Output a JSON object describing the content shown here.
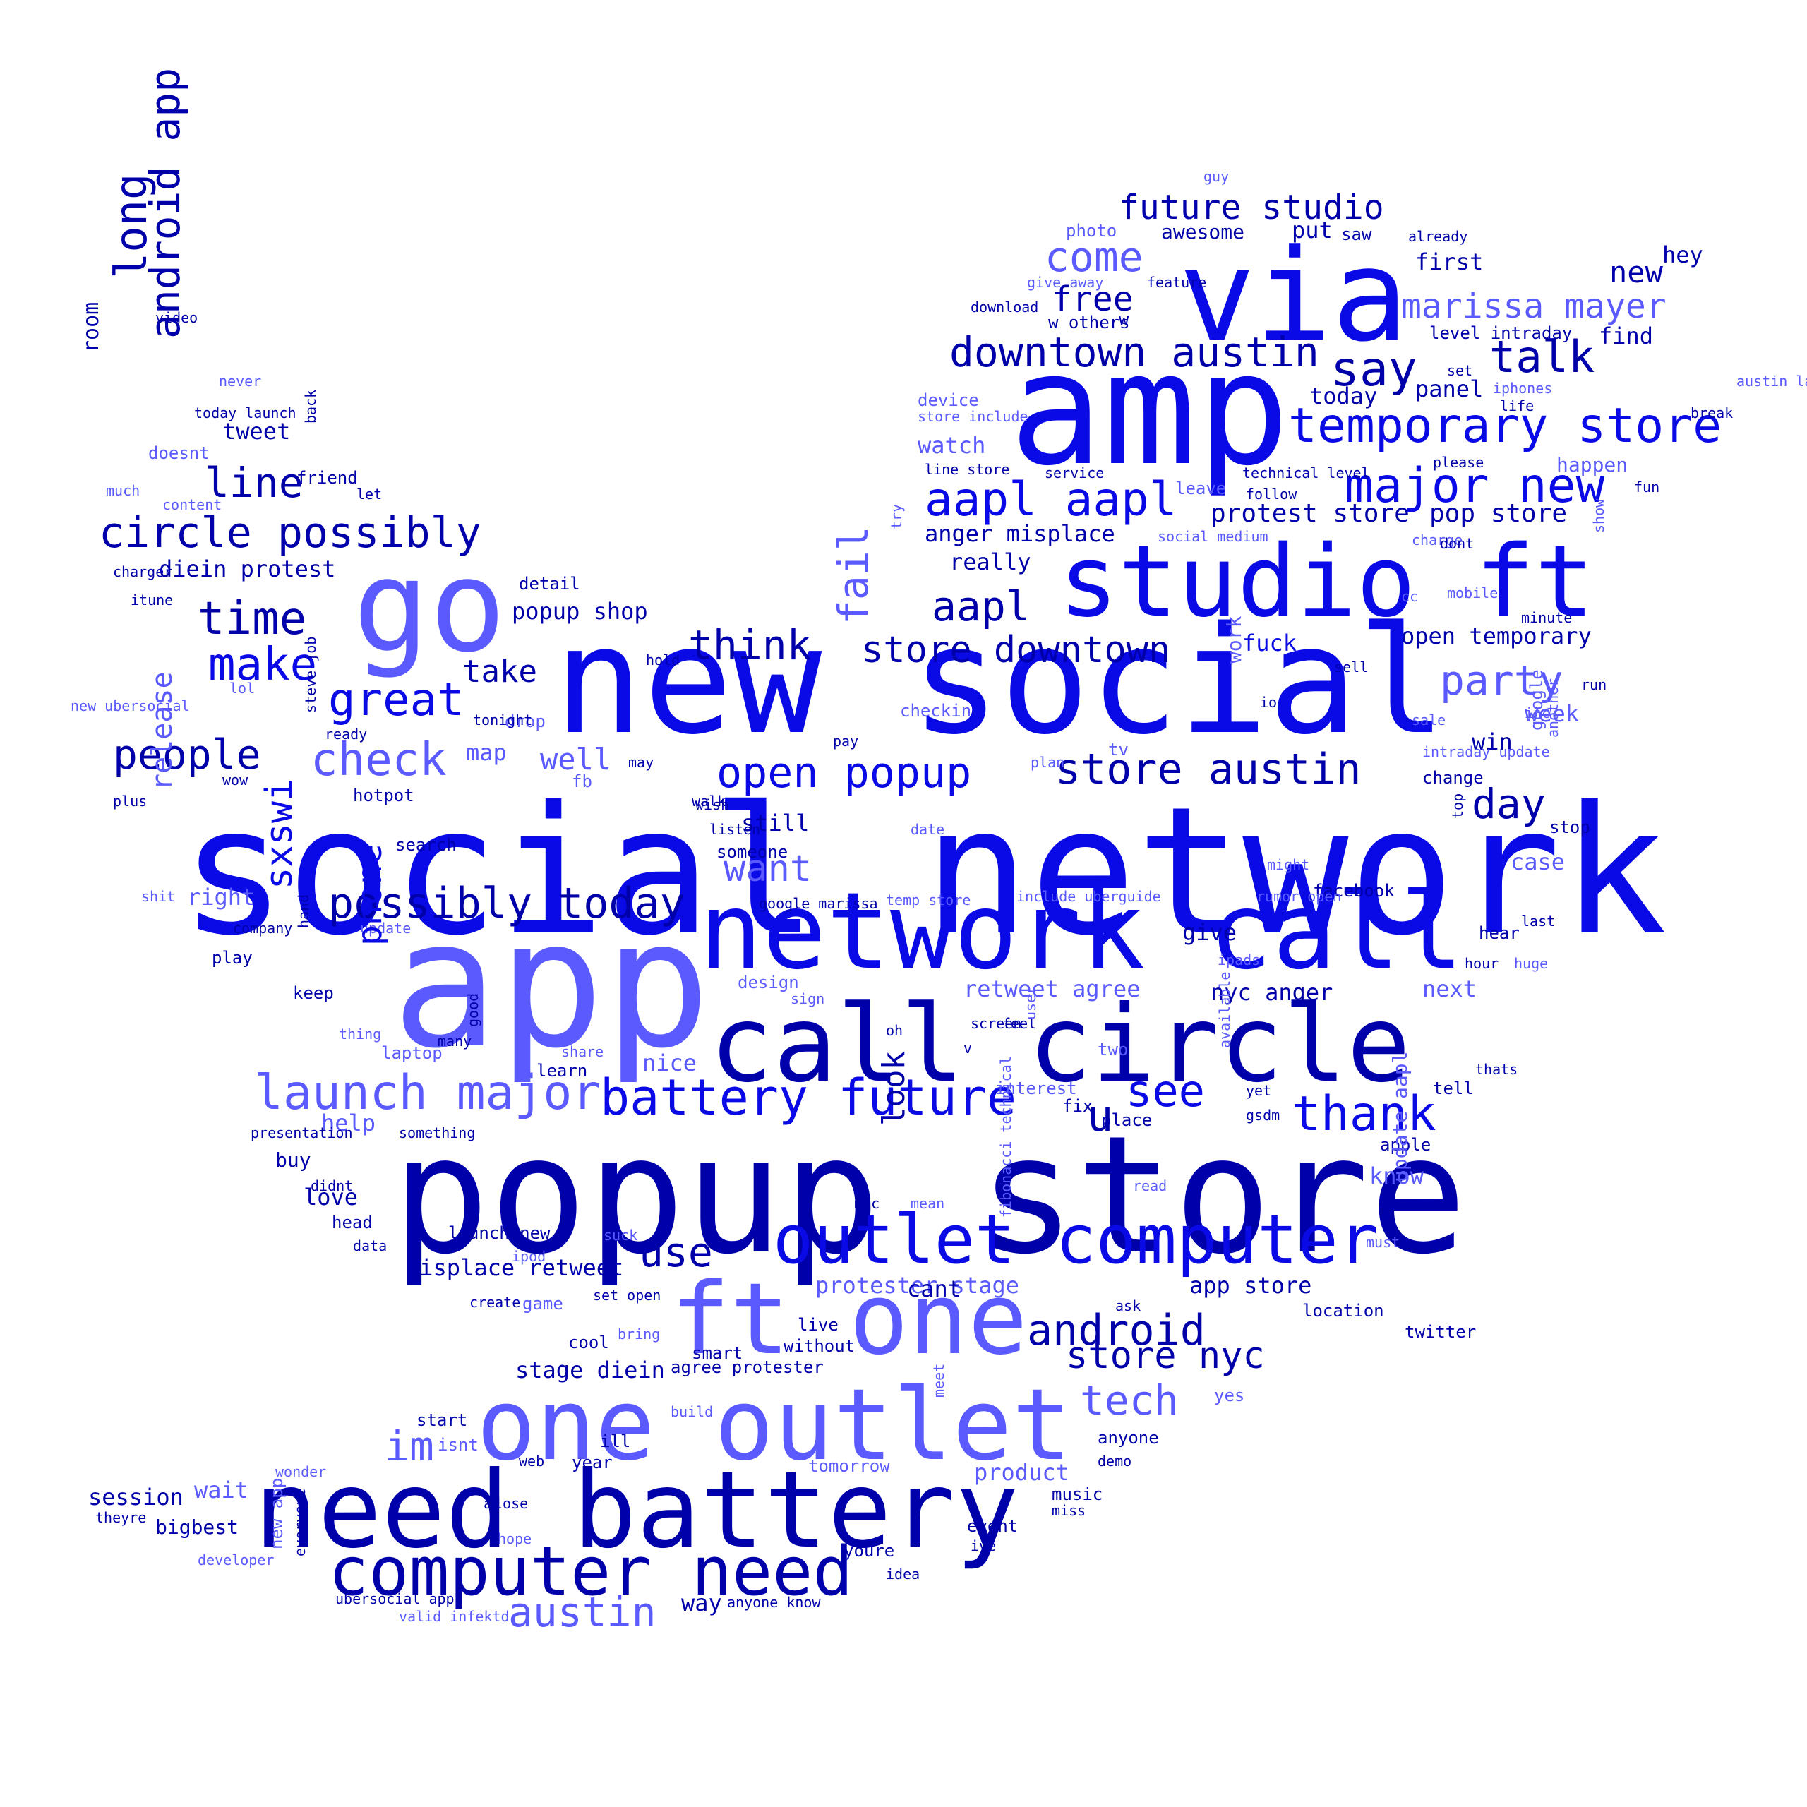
{
  "palette": {
    "dark": "#0000aa",
    "mid": "#0a0ae6",
    "light": "#5a5aff"
  },
  "words": [
    {
      "text": "social network",
      "c": "mid"
    },
    {
      "text": "popup store",
      "c": "dark"
    },
    {
      "text": "new social",
      "c": "mid"
    },
    {
      "text": "app",
      "c": "light"
    },
    {
      "text": "amp",
      "c": "mid"
    },
    {
      "text": "via",
      "c": "mid"
    },
    {
      "text": "go",
      "c": "light"
    },
    {
      "text": "network call",
      "c": "mid"
    },
    {
      "text": "call circle",
      "c": "dark"
    },
    {
      "text": "need battery",
      "c": "dark"
    },
    {
      "text": "studio ft",
      "c": "mid"
    },
    {
      "text": "ft one",
      "c": "light"
    },
    {
      "text": "one outlet",
      "c": "light"
    },
    {
      "text": "outlet computer",
      "c": "mid"
    },
    {
      "text": "computer need",
      "c": "dark"
    },
    {
      "text": "battery future",
      "c": "mid"
    },
    {
      "text": "launch major",
      "c": "light"
    },
    {
      "text": "possibly today",
      "c": "dark"
    },
    {
      "text": "circle possibly",
      "c": "dark"
    },
    {
      "text": "downtown austin",
      "c": "dark"
    },
    {
      "text": "temporary store",
      "c": "mid"
    },
    {
      "text": "major new",
      "c": "mid"
    },
    {
      "text": "aapl aapl",
      "c": "mid"
    },
    {
      "text": "store downtown",
      "c": "dark"
    },
    {
      "text": "store austin",
      "c": "dark"
    },
    {
      "text": "open popup",
      "c": "mid"
    },
    {
      "text": "future studio",
      "c": "dark"
    },
    {
      "text": "marissa mayer",
      "c": "light"
    },
    {
      "text": "talk",
      "c": "dark"
    },
    {
      "text": "say",
      "c": "dark"
    },
    {
      "text": "come",
      "c": "light"
    },
    {
      "text": "free",
      "c": "dark"
    },
    {
      "text": "aapl",
      "c": "dark"
    },
    {
      "text": "party",
      "c": "light"
    },
    {
      "text": "day",
      "c": "dark"
    },
    {
      "text": "android",
      "c": "dark"
    },
    {
      "text": "store nyc",
      "c": "dark"
    },
    {
      "text": "tech",
      "c": "light"
    },
    {
      "text": "thank",
      "c": "mid"
    },
    {
      "text": "see",
      "c": "mid"
    },
    {
      "text": "u",
      "c": "dark"
    },
    {
      "text": "use",
      "c": "dark"
    },
    {
      "text": "im",
      "c": "light"
    },
    {
      "text": "austin",
      "c": "light"
    },
    {
      "text": "time",
      "c": "dark"
    },
    {
      "text": "make",
      "c": "mid"
    },
    {
      "text": "great",
      "c": "mid"
    },
    {
      "text": "check",
      "c": "light"
    },
    {
      "text": "people",
      "c": "dark"
    },
    {
      "text": "line",
      "c": "dark"
    },
    {
      "text": "think",
      "c": "dark"
    },
    {
      "text": "want",
      "c": "light"
    },
    {
      "text": "well",
      "c": "light"
    },
    {
      "text": "take",
      "c": "dark"
    },
    {
      "text": "new",
      "c": "dark"
    },
    {
      "text": "protest store",
      "c": "dark"
    },
    {
      "text": "pop store",
      "c": "dark"
    },
    {
      "text": "anger misplace",
      "c": "dark"
    },
    {
      "text": "really",
      "c": "dark"
    },
    {
      "text": "watch",
      "c": "light"
    },
    {
      "text": "awesome",
      "c": "dark"
    },
    {
      "text": "first",
      "c": "dark"
    },
    {
      "text": "find",
      "c": "dark"
    },
    {
      "text": "hey",
      "c": "dark"
    },
    {
      "text": "today",
      "c": "dark"
    },
    {
      "text": "panel",
      "c": "dark"
    },
    {
      "text": "open temporary",
      "c": "dark"
    },
    {
      "text": "fuck",
      "c": "mid"
    },
    {
      "text": "week",
      "c": "light"
    },
    {
      "text": "win",
      "c": "dark"
    },
    {
      "text": "popup shop",
      "c": "dark"
    },
    {
      "text": "diein protest",
      "c": "dark"
    },
    {
      "text": "tweet",
      "c": "dark"
    },
    {
      "text": "still",
      "c": "dark"
    },
    {
      "text": "someone",
      "c": "dark"
    },
    {
      "text": "right",
      "c": "light"
    },
    {
      "text": "search",
      "c": "dark"
    },
    {
      "text": "play",
      "c": "dark"
    },
    {
      "text": "keep",
      "c": "dark"
    },
    {
      "text": "give",
      "c": "dark"
    },
    {
      "text": "nyc anger",
      "c": "dark"
    },
    {
      "text": "retweet agree",
      "c": "light"
    },
    {
      "text": "next",
      "c": "light"
    },
    {
      "text": "case",
      "c": "light"
    },
    {
      "text": "stop",
      "c": "dark"
    },
    {
      "text": "facebook",
      "c": "dark"
    },
    {
      "text": "design",
      "c": "light"
    },
    {
      "text": "nice",
      "c": "light"
    },
    {
      "text": "help",
      "c": "light"
    },
    {
      "text": "buy",
      "c": "dark"
    },
    {
      "text": "love",
      "c": "dark"
    },
    {
      "text": "head",
      "c": "dark"
    },
    {
      "text": "launch new",
      "c": "dark"
    },
    {
      "text": "misplace retweet",
      "c": "dark"
    },
    {
      "text": "protester stage",
      "c": "light"
    },
    {
      "text": "cant",
      "c": "dark"
    },
    {
      "text": "app store",
      "c": "dark"
    },
    {
      "text": "know",
      "c": "light"
    },
    {
      "text": "apple",
      "c": "dark"
    },
    {
      "text": "place",
      "c": "dark"
    },
    {
      "text": "tell",
      "c": "dark"
    },
    {
      "text": "twitter",
      "c": "dark"
    },
    {
      "text": "location",
      "c": "dark"
    },
    {
      "text": "stage diein",
      "c": "dark"
    },
    {
      "text": "agree protester",
      "c": "dark"
    },
    {
      "text": "cool",
      "c": "dark"
    },
    {
      "text": "smart",
      "c": "dark"
    },
    {
      "text": "live",
      "c": "dark"
    },
    {
      "text": "without",
      "c": "dark"
    },
    {
      "text": "start",
      "c": "dark"
    },
    {
      "text": "isnt",
      "c": "light"
    },
    {
      "text": "ill",
      "c": "dark"
    },
    {
      "text": "wait",
      "c": "light"
    },
    {
      "text": "session",
      "c": "dark"
    },
    {
      "text": "bigbest",
      "c": "dark"
    },
    {
      "text": "theyre",
      "c": "dark"
    },
    {
      "text": "developer",
      "c": "light"
    },
    {
      "text": "wonder",
      "c": "light"
    },
    {
      "text": "web",
      "c": "dark"
    },
    {
      "text": "year",
      "c": "dark"
    },
    {
      "text": "tomorrow",
      "c": "light"
    },
    {
      "text": "product",
      "c": "light"
    },
    {
      "text": "anyone",
      "c": "dark"
    },
    {
      "text": "demo",
      "c": "dark"
    },
    {
      "text": "music",
      "c": "dark"
    },
    {
      "text": "miss",
      "c": "dark"
    },
    {
      "text": "event",
      "c": "dark"
    },
    {
      "text": "ive",
      "c": "dark"
    },
    {
      "text": "youre",
      "c": "dark"
    },
    {
      "text": "idea",
      "c": "dark"
    },
    {
      "text": "way",
      "c": "dark"
    },
    {
      "text": "anyone know",
      "c": "dark"
    },
    {
      "text": "lose",
      "c": "dark"
    },
    {
      "text": "ad",
      "c": "dark"
    },
    {
      "text": "hope",
      "c": "light"
    },
    {
      "text": "ubersocial app",
      "c": "dark"
    },
    {
      "text": "valid infektd",
      "c": "light"
    },
    {
      "text": "set open",
      "c": "dark"
    },
    {
      "text": "create",
      "c": "dark"
    },
    {
      "text": "game",
      "c": "light"
    },
    {
      "text": "bring",
      "c": "light"
    },
    {
      "text": "build",
      "c": "light"
    },
    {
      "text": "yes",
      "c": "light"
    },
    {
      "text": "ask",
      "c": "dark"
    },
    {
      "text": "must",
      "c": "light"
    },
    {
      "text": "mean",
      "c": "light"
    },
    {
      "text": "mac",
      "c": "dark"
    },
    {
      "text": "read",
      "c": "light"
    },
    {
      "text": "suck",
      "c": "light"
    },
    {
      "text": "ipod",
      "c": "light"
    },
    {
      "text": "data",
      "c": "dark"
    },
    {
      "text": "didnt",
      "c": "dark"
    },
    {
      "text": "something",
      "c": "dark"
    },
    {
      "text": "presentation",
      "c": "dark"
    },
    {
      "text": "learn",
      "c": "dark"
    },
    {
      "text": "share",
      "c": "light"
    },
    {
      "text": "many",
      "c": "dark"
    },
    {
      "text": "laptop",
      "c": "light"
    },
    {
      "text": "thing",
      "c": "light"
    },
    {
      "text": "oh",
      "c": "dark"
    },
    {
      "text": "screen",
      "c": "dark"
    },
    {
      "text": "v",
      "c": "dark"
    },
    {
      "text": "feel",
      "c": "dark"
    },
    {
      "text": "two",
      "c": "light"
    },
    {
      "text": "interest",
      "c": "light"
    },
    {
      "text": "fix",
      "c": "dark"
    },
    {
      "text": "yet",
      "c": "dark"
    },
    {
      "text": "gsdm",
      "c": "dark"
    },
    {
      "text": "thats",
      "c": "dark"
    },
    {
      "text": "sign",
      "c": "light"
    },
    {
      "text": "update",
      "c": "light"
    },
    {
      "text": "company",
      "c": "dark"
    },
    {
      "text": "shit",
      "c": "light"
    },
    {
      "text": "plus",
      "c": "dark"
    },
    {
      "text": "wow",
      "c": "dark"
    },
    {
      "text": "hotpot",
      "c": "dark"
    },
    {
      "text": "fb",
      "c": "light"
    },
    {
      "text": "may",
      "c": "dark"
    },
    {
      "text": "listen",
      "c": "dark"
    },
    {
      "text": "wish",
      "c": "dark"
    },
    {
      "text": "walk",
      "c": "dark"
    },
    {
      "text": "google marissa",
      "c": "dark"
    },
    {
      "text": "temp store",
      "c": "light"
    },
    {
      "text": "include uberguide",
      "c": "light"
    },
    {
      "text": "rumor open",
      "c": "light"
    },
    {
      "text": "might",
      "c": "light"
    },
    {
      "text": "hear",
      "c": "dark"
    },
    {
      "text": "last",
      "c": "dark"
    },
    {
      "text": "hour",
      "c": "dark"
    },
    {
      "text": "huge",
      "c": "light"
    },
    {
      "text": "ipads",
      "c": "light"
    },
    {
      "text": "date",
      "c": "light"
    },
    {
      "text": "plan",
      "c": "light"
    },
    {
      "text": "tv",
      "c": "light"
    },
    {
      "text": "pay",
      "c": "dark"
    },
    {
      "text": "checkin",
      "c": "light"
    },
    {
      "text": "io",
      "c": "dark"
    },
    {
      "text": "sale",
      "c": "light"
    },
    {
      "text": "inc",
      "c": "light"
    },
    {
      "text": "intraday update",
      "c": "light"
    },
    {
      "text": "change",
      "c": "dark"
    },
    {
      "text": "run",
      "c": "dark"
    },
    {
      "text": "sell",
      "c": "dark"
    },
    {
      "text": "minute",
      "c": "dark"
    },
    {
      "text": "mobile",
      "c": "light"
    },
    {
      "text": "cc",
      "c": "light"
    },
    {
      "text": "charge",
      "c": "light"
    },
    {
      "text": "dont",
      "c": "dark"
    },
    {
      "text": "fun",
      "c": "dark"
    },
    {
      "text": "happen",
      "c": "light"
    },
    {
      "text": "please",
      "c": "dark"
    },
    {
      "text": "break",
      "c": "dark"
    },
    {
      "text": "austin launch",
      "c": "light"
    },
    {
      "text": "iphones",
      "c": "light"
    },
    {
      "text": "life",
      "c": "dark"
    },
    {
      "text": "set",
      "c": "dark"
    },
    {
      "text": "level intraday",
      "c": "dark"
    },
    {
      "text": "technical level",
      "c": "dark"
    },
    {
      "text": "follow",
      "c": "dark"
    },
    {
      "text": "social medium",
      "c": "light"
    },
    {
      "text": "service",
      "c": "dark"
    },
    {
      "text": "line store",
      "c": "dark"
    },
    {
      "text": "device",
      "c": "light"
    },
    {
      "text": "store include",
      "c": "light"
    },
    {
      "text": "leave",
      "c": "light"
    },
    {
      "text": "download",
      "c": "dark"
    },
    {
      "text": "w others",
      "c": "dark"
    },
    {
      "text": "w",
      "c": "dark"
    },
    {
      "text": "give away",
      "c": "light"
    },
    {
      "text": "feature",
      "c": "dark"
    },
    {
      "text": "photo",
      "c": "light"
    },
    {
      "text": "put",
      "c": "dark"
    },
    {
      "text": "saw",
      "c": "dark"
    },
    {
      "text": "already",
      "c": "dark"
    },
    {
      "text": "guy",
      "c": "light"
    },
    {
      "text": "video",
      "c": "dark"
    },
    {
      "text": "never",
      "c": "light"
    },
    {
      "text": "today launch",
      "c": "dark"
    },
    {
      "text": "friend",
      "c": "dark"
    },
    {
      "text": "let",
      "c": "dark"
    },
    {
      "text": "doesnt",
      "c": "light"
    },
    {
      "text": "much",
      "c": "light"
    },
    {
      "text": "content",
      "c": "light"
    },
    {
      "text": "charger",
      "c": "dark"
    },
    {
      "text": "itune",
      "c": "dark"
    },
    {
      "text": "detail",
      "c": "dark"
    },
    {
      "text": "hold",
      "c": "dark"
    },
    {
      "text": "drop",
      "c": "light"
    },
    {
      "text": "tonight",
      "c": "dark"
    },
    {
      "text": "ready",
      "c": "dark"
    },
    {
      "text": "lol",
      "c": "light"
    },
    {
      "text": "new ubersocial",
      "c": "light"
    },
    {
      "text": "map",
      "c": "light"
    },
    {
      "text": "steve job",
      "c": "dark"
    },
    {
      "text": "long",
      "c": "dark"
    },
    {
      "text": "android app",
      "c": "dark"
    },
    {
      "text": "room",
      "c": "dark"
    },
    {
      "text": "back",
      "c": "dark"
    },
    {
      "text": "fail",
      "c": "light"
    },
    {
      "text": "sxswi",
      "c": "mid"
    },
    {
      "text": "phone",
      "c": "mid"
    },
    {
      "text": "release",
      "c": "light"
    },
    {
      "text": "hand",
      "c": "dark"
    },
    {
      "text": "good",
      "c": "dark"
    },
    {
      "text": "look",
      "c": "dark"
    },
    {
      "text": "work",
      "c": "light"
    },
    {
      "text": "google",
      "c": "light"
    },
    {
      "text": "another",
      "c": "light"
    },
    {
      "text": "top",
      "c": "dark"
    },
    {
      "text": "show",
      "c": "light"
    },
    {
      "text": "try",
      "c": "light"
    },
    {
      "text": "user",
      "c": "light"
    },
    {
      "text": "available",
      "c": "light"
    },
    {
      "text": "update aapl",
      "c": "light"
    },
    {
      "text": "fibonacci technical",
      "c": "light"
    },
    {
      "text": "meet",
      "c": "light"
    },
    {
      "text": "new app",
      "c": "light"
    },
    {
      "text": "everyone",
      "c": "dark"
    },
    {
      "text": "lot",
      "c": "light"
    },
    {
      "text": "seem",
      "c": "dark"
    },
    {
      "text": "pick",
      "c": "light"
    },
    {
      "text": "even",
      "c": "dark"
    },
    {
      "text": "rock",
      "c": "light"
    }
  ]
}
